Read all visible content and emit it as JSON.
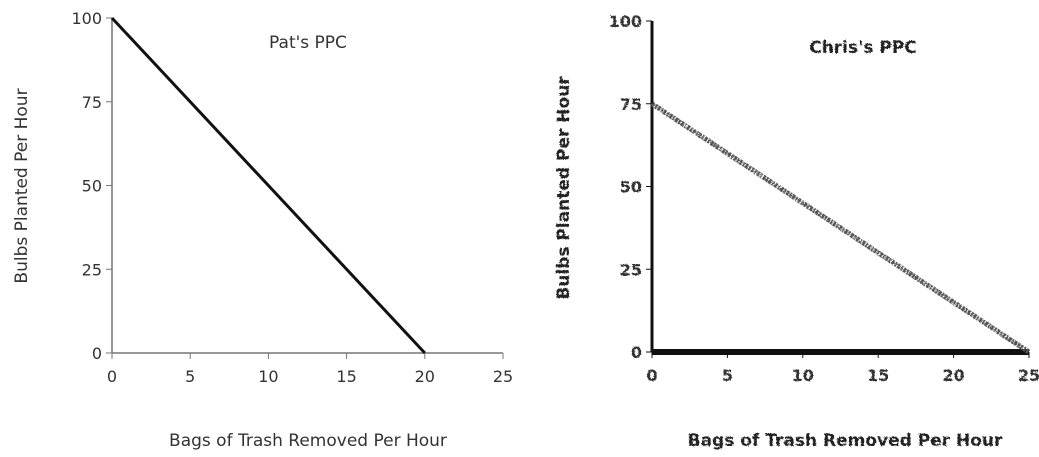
{
  "chart_data": [
    {
      "type": "line",
      "title": "Pat's PPC",
      "xlabel": "Bags of Trash Removed Per Hour",
      "ylabel": "Bulbs Planted Per Hour",
      "x_ticks": [
        "0",
        "5",
        "10",
        "15",
        "20",
        "25"
      ],
      "y_ticks": [
        "0",
        "25",
        "50",
        "75",
        "100"
      ],
      "xlim": [
        0,
        25
      ],
      "ylim": [
        0,
        100
      ],
      "grid": false,
      "series": [
        {
          "x": [
            0,
            20
          ],
          "y": [
            100,
            0
          ],
          "color": "#111111"
        }
      ]
    },
    {
      "type": "line",
      "title": "Chris's PPC",
      "xlabel": "Bags of Trash Removed Per Hour",
      "ylabel": "Bulbs Planted Per Hour",
      "x_ticks": [
        "0",
        "5",
        "10",
        "15",
        "20",
        "25"
      ],
      "y_ticks": [
        "0",
        "25",
        "50",
        "75",
        "100"
      ],
      "xlim": [
        0,
        25
      ],
      "ylim": [
        0,
        100
      ],
      "grid": false,
      "series": [
        {
          "x": [
            0,
            25
          ],
          "y": [
            75,
            0
          ],
          "color": "#555555"
        }
      ]
    }
  ]
}
